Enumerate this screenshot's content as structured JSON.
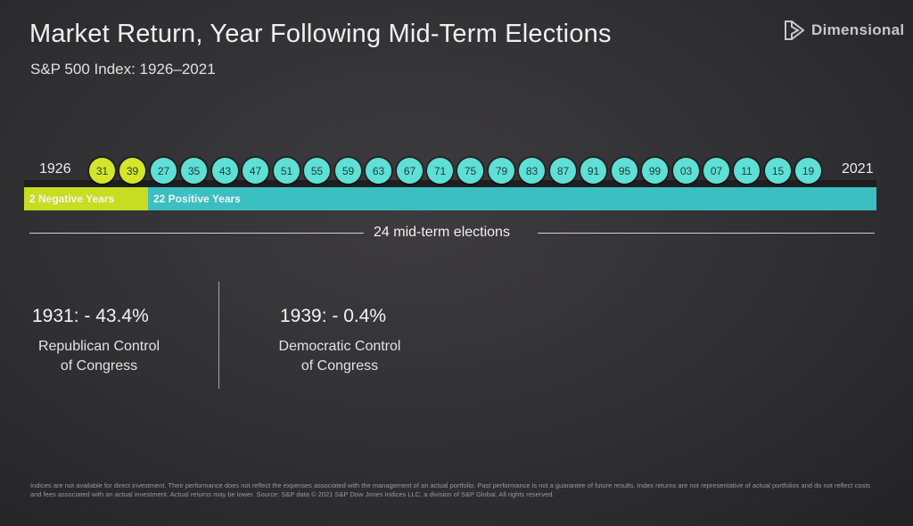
{
  "header": {
    "title": "Market Return, Year Following Mid-Term Elections",
    "subtitle": "S&P 500 Index: 1926–2021",
    "logo_text": "Dimensional"
  },
  "colors": {
    "negative": "#c6dd22",
    "positive": "#3bbfc0",
    "negative_circle": "#d4e62a",
    "positive_circle": "#5ee0d6"
  },
  "chart_data": {
    "type": "timeline",
    "start_label": "1926",
    "end_label": "2021",
    "years": [
      {
        "label": "31",
        "negative": true
      },
      {
        "label": "39",
        "negative": true
      },
      {
        "label": "27",
        "negative": false
      },
      {
        "label": "35",
        "negative": false
      },
      {
        "label": "43",
        "negative": false
      },
      {
        "label": "47",
        "negative": false
      },
      {
        "label": "51",
        "negative": false
      },
      {
        "label": "55",
        "negative": false
      },
      {
        "label": "59",
        "negative": false
      },
      {
        "label": "63",
        "negative": false
      },
      {
        "label": "67",
        "negative": false
      },
      {
        "label": "71",
        "negative": false
      },
      {
        "label": "75",
        "negative": false
      },
      {
        "label": "79",
        "negative": false
      },
      {
        "label": "83",
        "negative": false
      },
      {
        "label": "87",
        "negative": false
      },
      {
        "label": "91",
        "negative": false
      },
      {
        "label": "95",
        "negative": false
      },
      {
        "label": "99",
        "negative": false
      },
      {
        "label": "03",
        "negative": false
      },
      {
        "label": "07",
        "negative": false
      },
      {
        "label": "11",
        "negative": false
      },
      {
        "label": "15",
        "negative": false
      },
      {
        "label": "19",
        "negative": false
      }
    ],
    "negative_count": 2,
    "positive_count": 22,
    "negative_band_label": "2 Negative Years",
    "positive_band_label": "22 Positive Years",
    "total_label": "24 mid-term elections"
  },
  "stats": [
    {
      "value": "1931: - 43.4%",
      "label_line1": "Republican Control",
      "label_line2": "of Congress"
    },
    {
      "value": "1939: - 0.4%",
      "label_line1": "Democratic Control",
      "label_line2": "of Congress"
    }
  ],
  "footnote": "Indices are not available for direct investment. Their performance does not reflect the expenses associated with the management of an actual portfolio. Past performance is not a guarantee of future results. Index returns are not representative of actual portfolios and do not reflect costs and fees associated with an actual investment. Actual returns may be lower. Source: S&P data © 2021 S&P Dow Jones Indices LLC, a division of S&P Global. All rights reserved."
}
